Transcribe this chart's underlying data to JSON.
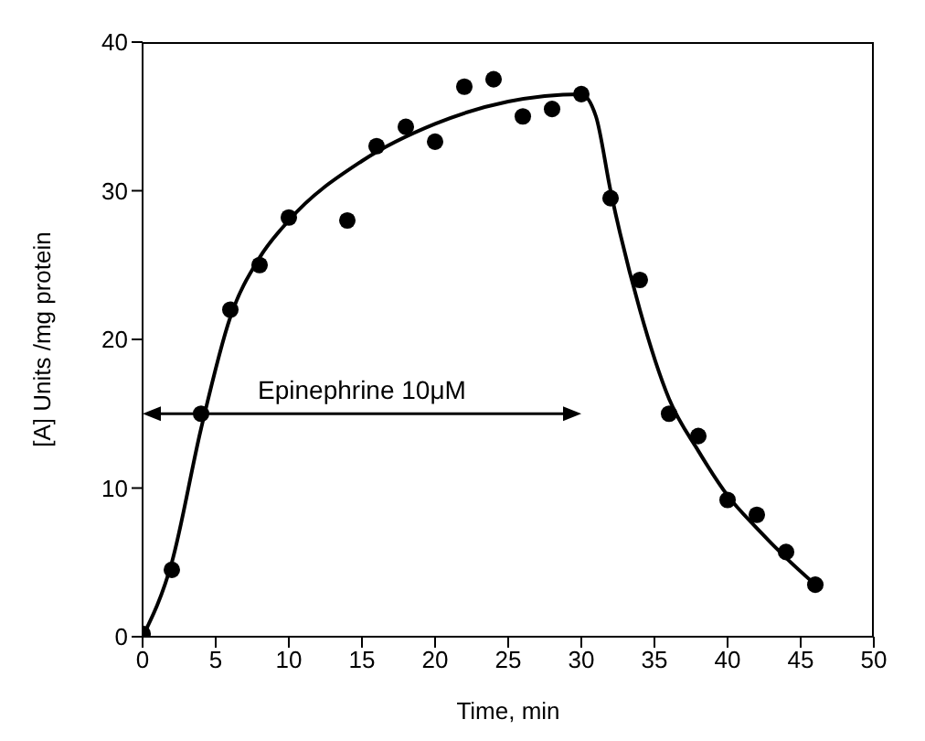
{
  "chart_data": {
    "type": "scatter",
    "xlabel": "Time,  min",
    "ylabel": "[A]  Units /mg protein",
    "xlim": [
      0,
      50
    ],
    "xticks": [
      0,
      5,
      10,
      15,
      20,
      25,
      30,
      35,
      40,
      45,
      50
    ],
    "ylim": [
      0,
      40
    ],
    "yticks": [
      0,
      10,
      20,
      30,
      40
    ],
    "annotations": [
      "Epinephrine 10μM"
    ],
    "series": [
      {
        "color": "#000000",
        "x": [
          0,
          2,
          4,
          6,
          8,
          10,
          14,
          16,
          18,
          20,
          22,
          24,
          26,
          28,
          30,
          32,
          34,
          36,
          38,
          40,
          42,
          44,
          46
        ],
        "values": [
          0.2,
          4.5,
          15,
          22,
          25,
          28.2,
          28,
          33,
          34.3,
          33.3,
          37,
          37.5,
          35,
          35.5,
          36.5,
          29.5,
          24,
          15,
          13.5,
          9.2,
          8.2,
          5.7,
          3.5
        ]
      },
      {
        "type": "line",
        "color": "#000000",
        "line_style": "solid",
        "x": [
          0,
          2,
          4,
          6,
          8,
          10,
          15,
          20,
          25,
          30,
          31,
          32,
          34,
          36,
          38,
          40,
          42,
          44,
          46
        ],
        "values": [
          0,
          5,
          14,
          21.5,
          25.5,
          28,
          32,
          34.5,
          36,
          36.5,
          35,
          30,
          22,
          16,
          12.5,
          9.5,
          7.3,
          5.3,
          3.5
        ]
      }
    ]
  }
}
